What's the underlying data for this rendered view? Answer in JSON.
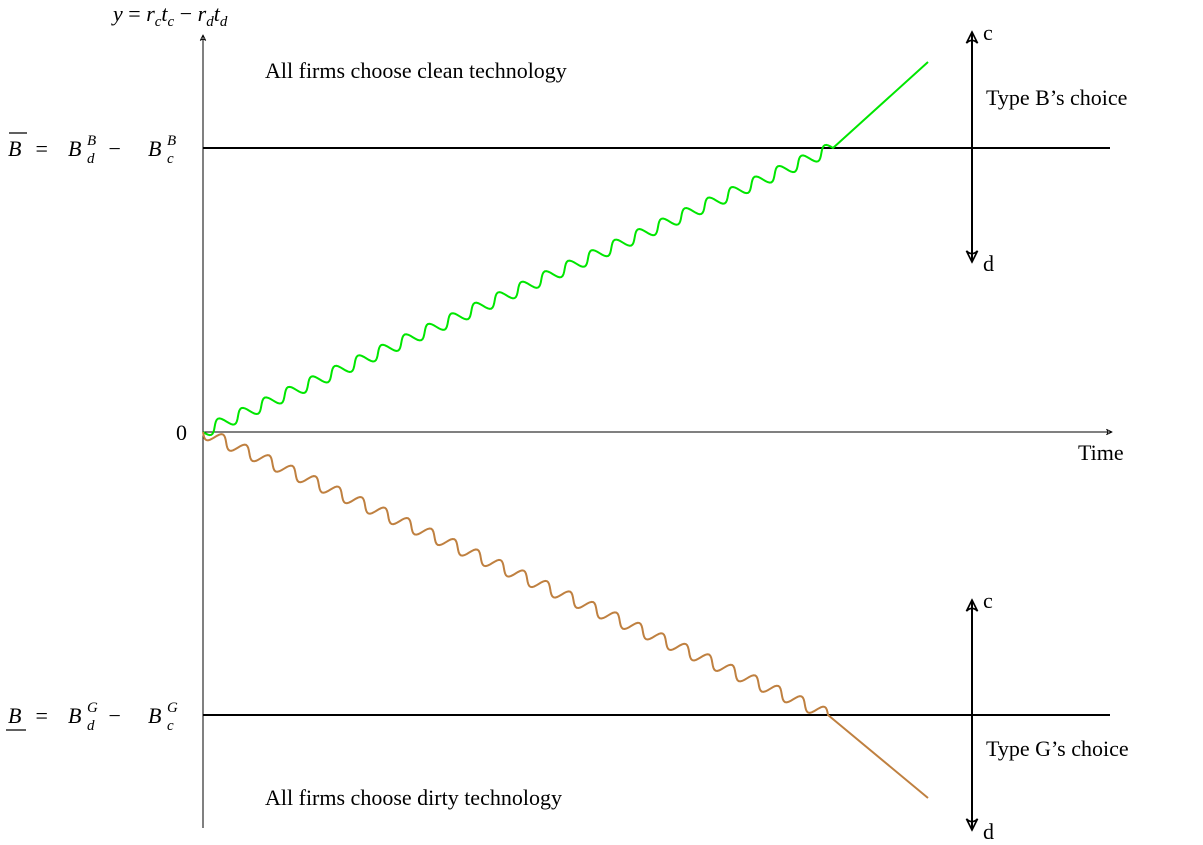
{
  "y_axis_label": [
    "y",
    " = ",
    "r",
    "c",
    "t",
    "c",
    " − ",
    "r",
    "d",
    "t",
    "d"
  ],
  "x_axis_label": "Time",
  "origin_label": "0",
  "upper_threshold": [
    "B",
    " = ",
    "B",
    "B",
    "d",
    " − ",
    "B",
    "B",
    "c"
  ],
  "lower_threshold": [
    "B",
    " = ",
    "B",
    "G",
    "d",
    " − ",
    "B",
    "G",
    "c"
  ],
  "region_labels": {
    "top": "All firms choose clean technology",
    "bottom": "All firms choose dirty technology"
  },
  "type_b": {
    "title": "Type B’s choice",
    "top": "c",
    "bottom": "d"
  },
  "type_g": {
    "title": "Type G’s choice",
    "top": "c",
    "bottom": "d"
  }
}
